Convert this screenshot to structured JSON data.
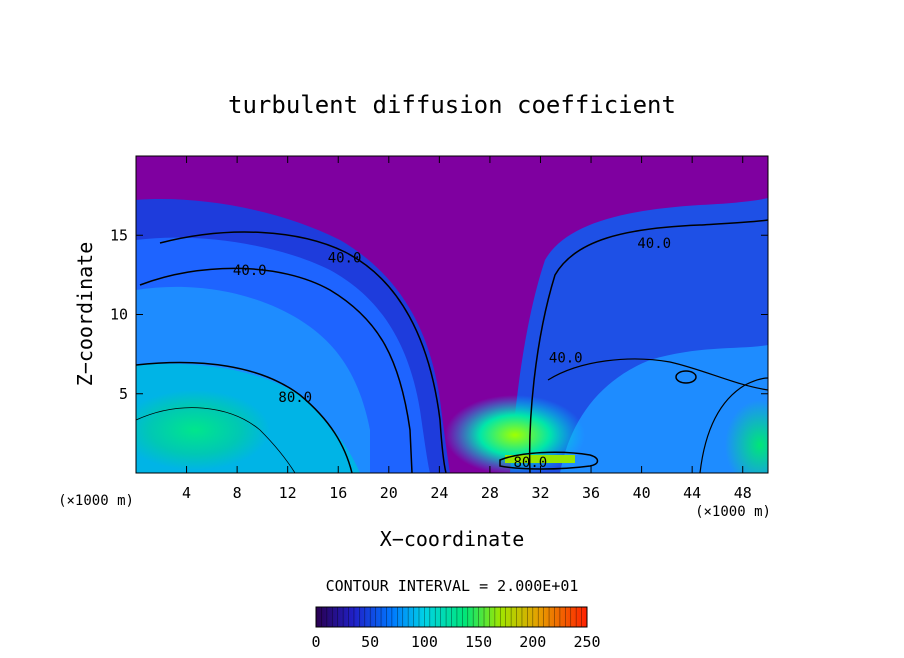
{
  "chart_data": {
    "type": "heatmap",
    "title": "turbulent diffusion coefficient",
    "xlabel": "X−coordinate",
    "ylabel": "Z−coordinate",
    "x_unit": "(×1000 m)",
    "y_unit": "(×1000 m)",
    "xlim": [
      0,
      50
    ],
    "ylim": [
      0,
      20
    ],
    "x_ticks": [
      4,
      8,
      12,
      16,
      20,
      24,
      28,
      32,
      36,
      40,
      44,
      48
    ],
    "y_ticks": [
      5,
      10,
      15
    ],
    "contour_interval_text": "CONTOUR INTERVAL = 2.000E+01",
    "contour_labels": [
      {
        "text": "40.0",
        "x": 9,
        "z": 12.8
      },
      {
        "text": "40.0",
        "x": 16.5,
        "z": 13.6
      },
      {
        "text": "40.0",
        "x": 34,
        "z": 7.3
      },
      {
        "text": "40.0",
        "x": 41,
        "z": 14.5
      },
      {
        "text": "80.0",
        "x": 12.6,
        "z": 4.8
      },
      {
        "text": "80.0",
        "x": 31.2,
        "z": 0.7
      }
    ],
    "colorbar": {
      "min": 0,
      "max": 250,
      "ticks": [
        0,
        50,
        100,
        150,
        200,
        250
      ],
      "colors": [
        "#7f00a0",
        "#0000c8",
        "#0064ff",
        "#00c8ff",
        "#00ff96",
        "#96ff00",
        "#ffc800",
        "#ff0000"
      ]
    },
    "regions": [
      {
        "desc": "upper calm layer",
        "value": 0
      },
      {
        "desc": "left vortex core",
        "value": 40
      },
      {
        "desc": "left lower boundary",
        "value": 110
      },
      {
        "desc": "central convective column",
        "value": 150
      },
      {
        "desc": "right vortex",
        "value": 45
      },
      {
        "desc": "right lower corner",
        "value": 100
      }
    ],
    "grid": false,
    "legend": "colorbar-bottom"
  }
}
